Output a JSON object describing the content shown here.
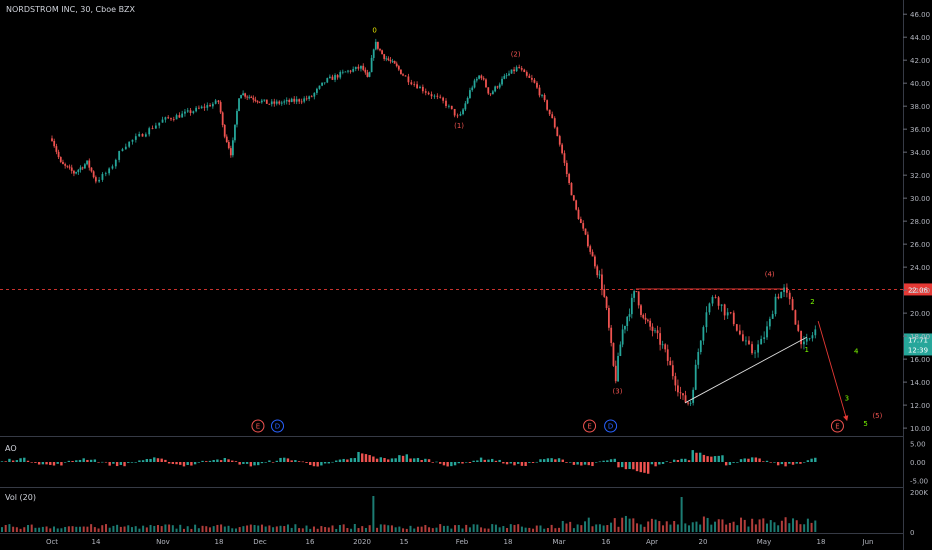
{
  "symbol_title": "NORDSTROM INC, 30, Cboe BZX",
  "colors": {
    "up": "#26a69a",
    "down": "#ef5350",
    "bg": "#000000",
    "axis": "#b2b5be",
    "red_line": "#e53935",
    "white_line": "#e0e0e0",
    "yellow": "#e6e600",
    "wave_red": "#ef5350",
    "wave_green": "#7cfc00"
  },
  "chart_data": {
    "type": "line",
    "title": "NORDSTROM INC, 30, Cboe BZX",
    "price_axis": {
      "ylim": [
        9.4,
        46.8
      ],
      "ticks": [
        46,
        44,
        42,
        40,
        38,
        36,
        34,
        32,
        30,
        28,
        26,
        24,
        22,
        20,
        18,
        16,
        14,
        12,
        10
      ],
      "tick_labels": [
        "46.00",
        "44.00",
        "42.00",
        "40.00",
        "38.00",
        "36.00",
        "34.00",
        "32.00",
        "30.00",
        "28.00",
        "26.00",
        "24.00",
        "22.00",
        "20.00",
        "18.00",
        "16.00",
        "14.00",
        "12.00",
        "10.00"
      ]
    },
    "time_axis": {
      "labels": [
        "Oct",
        "14",
        "Nov",
        "18",
        "Dec",
        "16",
        "2020",
        "15",
        "Feb",
        "18",
        "Mar",
        "16",
        "Apr",
        "20",
        "May",
        "18",
        "Jun"
      ],
      "positions": [
        0,
        1,
        2,
        3,
        4,
        5,
        6,
        7,
        8,
        9,
        10,
        11,
        12,
        13,
        14,
        15,
        16
      ]
    },
    "price_series": {
      "name": "NORDSTROM INC",
      "points": [
        [
          0,
          35.2
        ],
        [
          0.2,
          33.0
        ],
        [
          0.5,
          32.2
        ],
        [
          0.8,
          33.1
        ],
        [
          1.0,
          31.5
        ],
        [
          1.2,
          32.4
        ],
        [
          1.4,
          34.5
        ],
        [
          1.7,
          35.6
        ],
        [
          2.0,
          36.8
        ],
        [
          2.3,
          37.2
        ],
        [
          2.6,
          37.7
        ],
        [
          3.0,
          38.4
        ],
        [
          3.1,
          36.0
        ],
        [
          3.3,
          33.8
        ],
        [
          3.5,
          39.2
        ],
        [
          3.9,
          38.6
        ],
        [
          4.2,
          38.2
        ],
        [
          4.6,
          38.4
        ],
        [
          5.0,
          38.7
        ],
        [
          5.3,
          40.2
        ],
        [
          5.7,
          41.0
        ],
        [
          6.0,
          41.4
        ],
        [
          6.15,
          40.2
        ],
        [
          6.3,
          43.6
        ],
        [
          6.5,
          42.4
        ],
        [
          6.8,
          41.5
        ],
        [
          7.1,
          40.2
        ],
        [
          7.4,
          39.2
        ],
        [
          7.7,
          38.3
        ],
        [
          7.95,
          36.9
        ],
        [
          8.2,
          39.6
        ],
        [
          8.4,
          40.8
        ],
        [
          8.6,
          39.0
        ],
        [
          8.9,
          40.4
        ],
        [
          9.2,
          41.4
        ],
        [
          9.35,
          40.6
        ],
        [
          9.5,
          40.1
        ],
        [
          9.7,
          38.5
        ],
        [
          9.9,
          36.5
        ],
        [
          10.05,
          34.2
        ],
        [
          10.2,
          31.5
        ],
        [
          10.35,
          29.1
        ],
        [
          10.55,
          26.8
        ],
        [
          10.75,
          24.4
        ],
        [
          10.9,
          22.7
        ],
        [
          11.0,
          20.5
        ],
        [
          11.1,
          17.4
        ],
        [
          11.2,
          14.0
        ],
        [
          11.35,
          18.4
        ],
        [
          11.5,
          20.2
        ],
        [
          11.65,
          22.1
        ],
        [
          11.8,
          19.5
        ],
        [
          12.0,
          18.6
        ],
        [
          12.2,
          17.2
        ],
        [
          12.4,
          14.8
        ],
        [
          12.6,
          12.5
        ],
        [
          12.75,
          12.1
        ],
        [
          12.9,
          16.5
        ],
        [
          13.05,
          20.3
        ],
        [
          13.2,
          21.6
        ],
        [
          13.35,
          20.2
        ],
        [
          13.5,
          19.4
        ],
        [
          13.65,
          17.6
        ],
        [
          13.8,
          16.6
        ],
        [
          13.95,
          17.4
        ],
        [
          14.1,
          19.2
        ],
        [
          14.2,
          21.4
        ],
        [
          14.35,
          22.0
        ],
        [
          14.5,
          20.4
        ],
        [
          14.6,
          18.4
        ],
        [
          14.7,
          17.1
        ],
        [
          14.8,
          17.7
        ],
        [
          14.9,
          18.5
        ]
      ]
    },
    "hlines": [
      {
        "price": 22.06,
        "label": "22.06",
        "style": "dashed",
        "color": "#e53935"
      }
    ],
    "price_badges": [
      {
        "price": 17.71,
        "label": "17.71",
        "sub": "12:39",
        "color": "#26a69a"
      }
    ],
    "trendlines": [
      {
        "from": [
          11.65,
          22.1
        ],
        "to": [
          14.35,
          22.1
        ],
        "color": "#e53935"
      },
      {
        "from": [
          12.65,
          12.2
        ],
        "to": [
          14.75,
          17.9
        ],
        "color": "#e0e0e0"
      },
      {
        "from": [
          14.95,
          19.3
        ],
        "to": [
          15.55,
          10.7
        ],
        "color": "#e53935",
        "arrow": true
      }
    ],
    "wave_labels": [
      {
        "text": "0",
        "x": 6.3,
        "price": 44.4,
        "color": "#e6e600"
      },
      {
        "text": "(1)",
        "x": 7.95,
        "price": 36.1,
        "color": "#ef5350"
      },
      {
        "text": "(2)",
        "x": 9.15,
        "price": 42.3,
        "color": "#ef5350"
      },
      {
        "text": "(3)",
        "x": 11.25,
        "price": 13.0,
        "color": "#ef5350"
      },
      {
        "text": "(4)",
        "x": 14.1,
        "price": 23.2,
        "color": "#ef5350"
      },
      {
        "text": "(5)",
        "x": 16.2,
        "price": 10.9,
        "color": "#ef5350"
      },
      {
        "text": "1",
        "x": 14.75,
        "price": 16.6,
        "color": "#7cfc00"
      },
      {
        "text": "2",
        "x": 14.85,
        "price": 20.8,
        "color": "#7cfc00"
      },
      {
        "text": "3",
        "x": 15.55,
        "price": 12.4,
        "color": "#7cfc00"
      },
      {
        "text": "4",
        "x": 15.75,
        "price": 16.5,
        "color": "#7cfc00"
      },
      {
        "text": "5",
        "x": 15.95,
        "price": 10.2,
        "color": "#7cfc00"
      }
    ],
    "event_markers": [
      {
        "text": "E",
        "x": 3.95,
        "color": "#ef5350"
      },
      {
        "text": "D",
        "x": 4.35,
        "color": "#2962ff"
      },
      {
        "text": "E",
        "x": 10.65,
        "color": "#ef5350"
      },
      {
        "text": "D",
        "x": 11.1,
        "color": "#2962ff"
      },
      {
        "text": "E",
        "x": 15.35,
        "color": "#ef5350"
      }
    ]
  },
  "ao_pane": {
    "label": "AO",
    "ylim": [
      -6.5,
      6.5
    ],
    "ticks": [
      5.0,
      0.0,
      -5.0
    ],
    "tick_labels": [
      "5.00",
      "0.00",
      "-5.00"
    ],
    "bar_count": 220
  },
  "vol_pane": {
    "label": "Vol (20)",
    "ylim": [
      0,
      220
    ],
    "ticks": [
      200,
      0
    ],
    "tick_labels": [
      "200K",
      "0"
    ],
    "bar_count": 220
  }
}
